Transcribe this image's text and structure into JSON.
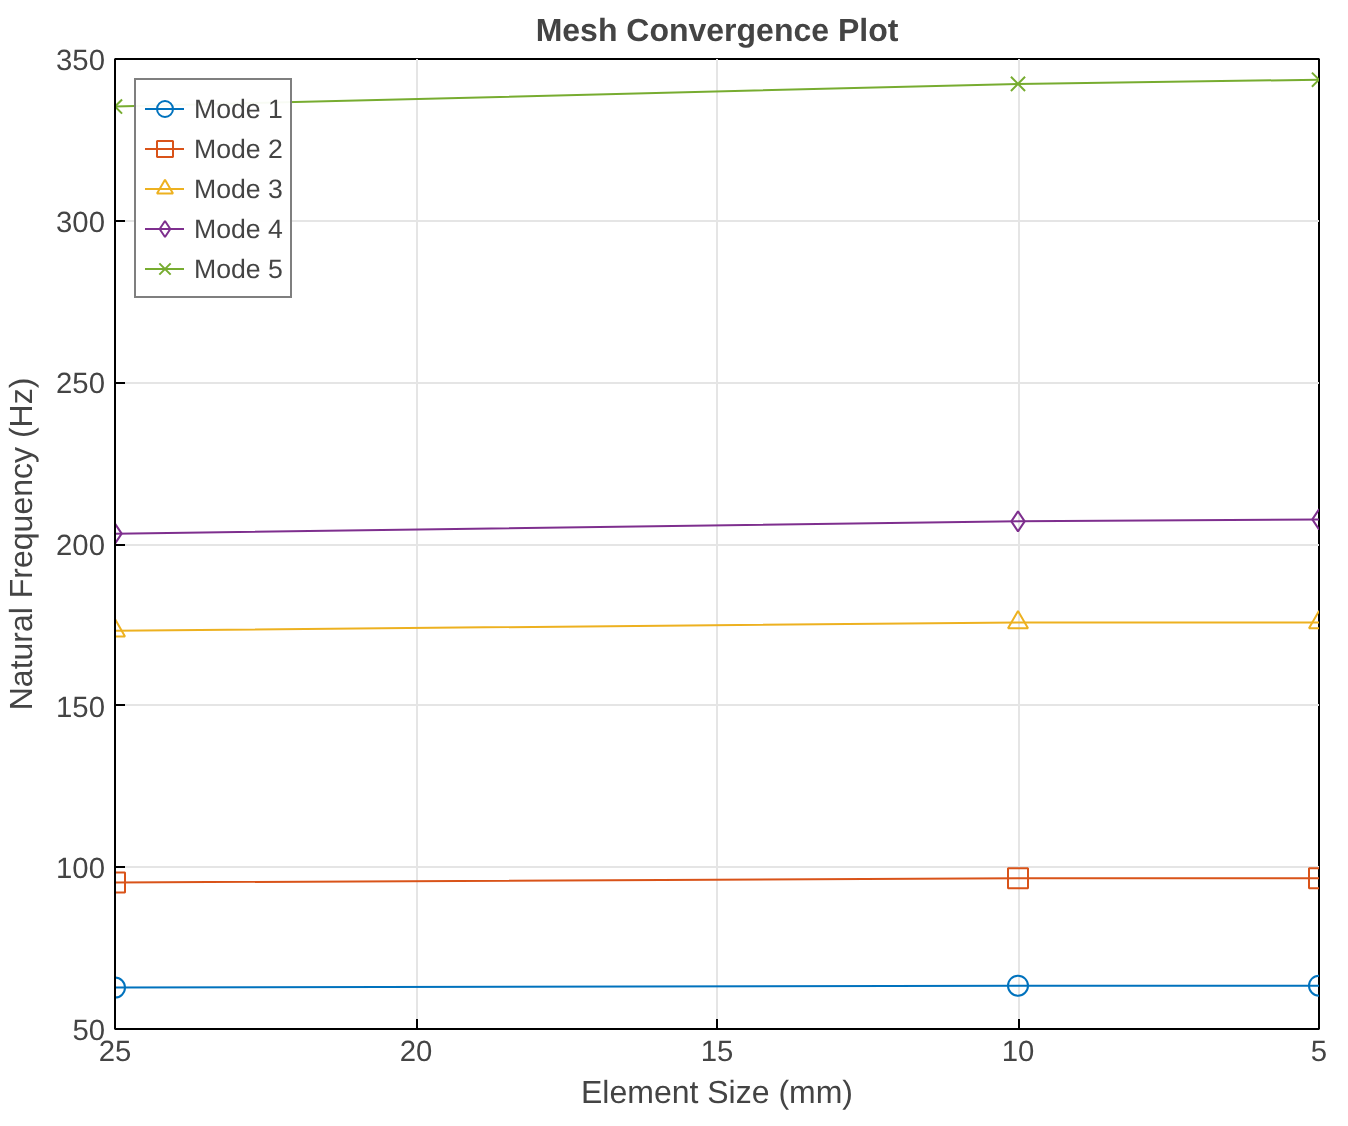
{
  "chart_data": {
    "type": "line",
    "title": "Mesh Convergence Plot",
    "xlabel": "Element Size (mm)",
    "ylabel": "Natural Frequency (Hz)",
    "x": [
      25,
      10,
      5
    ],
    "series": [
      {
        "name": "Mode 1",
        "color": "#0072bd",
        "marker": "circle",
        "values": [
          62.8,
          63.4,
          63.4
        ]
      },
      {
        "name": "Mode 2",
        "color": "#d95319",
        "marker": "square",
        "values": [
          95.3,
          96.6,
          96.6
        ]
      },
      {
        "name": "Mode 3",
        "color": "#edb120",
        "marker": "triangle",
        "values": [
          173.2,
          175.7,
          175.7
        ]
      },
      {
        "name": "Mode 4",
        "color": "#7e2f8e",
        "marker": "diamond",
        "values": [
          203.2,
          207,
          207.6
        ]
      },
      {
        "name": "Mode 5",
        "color": "#77ac30",
        "marker": "cross",
        "values": [
          335.3,
          342.3,
          343.6
        ]
      }
    ],
    "xlim": [
      25,
      5
    ],
    "xticks": [
      25,
      20,
      15,
      10,
      5
    ],
    "ylim": [
      50,
      350
    ],
    "yticks": [
      50,
      100,
      150,
      200,
      250,
      300,
      350
    ],
    "grid": true,
    "legend": "top left",
    "line_style": "solid"
  }
}
